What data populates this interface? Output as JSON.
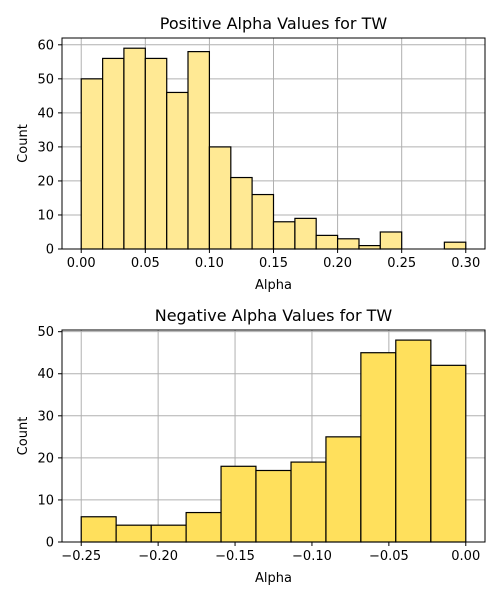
{
  "chart_data": [
    {
      "type": "bar",
      "subtype": "histogram",
      "title": "Positive Alpha Values for TW",
      "xlabel": "Alpha",
      "ylabel": "Count",
      "bin_edges": [
        0.0,
        0.0167,
        0.0333,
        0.05,
        0.0667,
        0.0833,
        0.1,
        0.1167,
        0.1333,
        0.15,
        0.1667,
        0.1833,
        0.2,
        0.2167,
        0.2333,
        0.25,
        0.2667,
        0.2833,
        0.3
      ],
      "values": [
        50,
        56,
        59,
        56,
        46,
        58,
        30,
        21,
        16,
        8,
        9,
        4,
        3,
        1,
        5,
        0,
        0,
        2
      ],
      "xlim": [
        -0.015,
        0.315
      ],
      "ylim": [
        0,
        62
      ],
      "xticks": [
        0.0,
        0.05,
        0.1,
        0.15,
        0.2,
        0.25,
        0.3
      ],
      "xtick_labels": [
        "0.00",
        "0.05",
        "0.10",
        "0.15",
        "0.20",
        "0.25",
        "0.30"
      ],
      "yticks": [
        0,
        10,
        20,
        30,
        40,
        50,
        60
      ],
      "ytick_labels": [
        "0",
        "10",
        "20",
        "30",
        "40",
        "50",
        "60"
      ],
      "bar_color": "#ffe994",
      "grid": true
    },
    {
      "type": "bar",
      "subtype": "histogram",
      "title": "Negative Alpha Values for TW",
      "xlabel": "Alpha",
      "ylabel": "Count",
      "bin_edges": [
        -0.25,
        -0.2273,
        -0.2045,
        -0.1818,
        -0.1591,
        -0.1364,
        -0.1136,
        -0.0909,
        -0.0682,
        -0.0455,
        -0.0227,
        0.0
      ],
      "values": [
        6,
        4,
        4,
        7,
        18,
        17,
        19,
        25,
        45,
        48,
        42
      ],
      "xlim": [
        -0.2625,
        0.0125
      ],
      "ylim": [
        0,
        50.4
      ],
      "xticks": [
        -0.25,
        -0.2,
        -0.15,
        -0.1,
        -0.05,
        0.0
      ],
      "xtick_labels": [
        "−0.25",
        "−0.20",
        "−0.15",
        "−0.10",
        "−0.05",
        "0.00"
      ],
      "yticks": [
        0,
        10,
        20,
        30,
        40,
        50
      ],
      "ytick_labels": [
        "0",
        "10",
        "20",
        "30",
        "40",
        "50"
      ],
      "bar_color": "#ffe05c",
      "grid": true
    }
  ]
}
